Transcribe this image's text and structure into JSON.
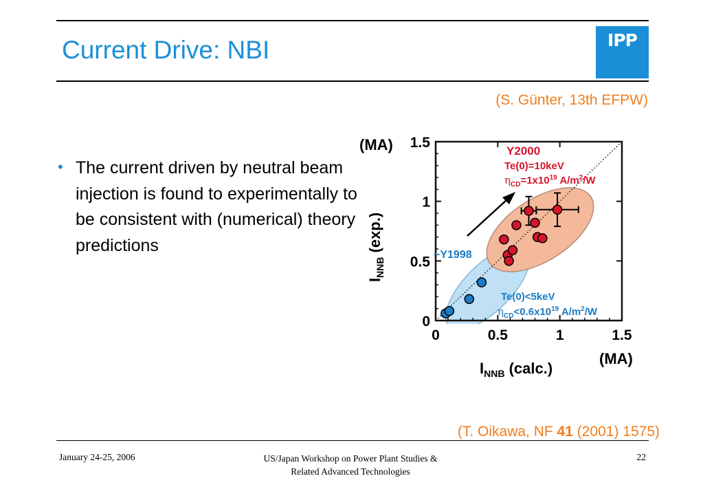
{
  "slide": {
    "title": "Current Drive: NBI",
    "logo_text": "IPP",
    "citation_top": "(S. Günter, 13th EFPW)",
    "bullet": "The current driven by neutral beam injection is found to experimentally to be consistent with (numerical) theory predictions",
    "citation_bottom": {
      "pre": "(T. Oikawa, NF ",
      "volume": "41",
      "post": " (2001) 1575)"
    }
  },
  "footer": {
    "date": "January 24-25, 2006",
    "center_line1": "US/Japan Workshop on Power Plant Studies &",
    "center_line2": "Related Advanced Technologies",
    "page": "22"
  },
  "colors": {
    "accent_blue": "#1a8fd8",
    "citation_orange": "#f07d1e",
    "red_points": "#d7142c",
    "blue_points": "#1c7bc4",
    "orange_ellipse": "#f3b99a",
    "blue_ellipse": "#bfe0f5"
  },
  "chart_data": {
    "type": "scatter",
    "xlim": [
      0,
      1.5
    ],
    "ylim": [
      0,
      1.5
    ],
    "x_ticks": [
      "0",
      "0.5",
      "1",
      "1.5"
    ],
    "y_ticks": [
      "0",
      "0.5",
      "1",
      "1.5"
    ],
    "xlabel": {
      "main": "I",
      "sub": "NNB",
      "rest": " (calc.)"
    },
    "ylabel": {
      "main": "I",
      "sub": "NNB",
      "rest": " (exp.)"
    },
    "x_unit": "(MA)",
    "y_unit": "(MA)",
    "reference_line": "y = x (dotted)",
    "annotations": {
      "y1998": "~Y1998",
      "y2000": "Y2000",
      "red_te": "Te(0)=10keV",
      "red_eta": {
        "sym": "η",
        "sub": "CD",
        "pre": "=1x10",
        "exp": "19",
        "unit": " A/m",
        "exp2": "2",
        "tail": "/W"
      },
      "blue_te": "Te(0)<5keV",
      "blue_eta": {
        "sym": "η",
        "sub": "CD",
        "pre": "<0.6x10",
        "exp": "19",
        "unit": " A/m",
        "exp2": "2",
        "tail": "/W"
      }
    },
    "series": [
      {
        "name": "Y2000",
        "color": "#d7142c",
        "points": [
          {
            "x": 0.55,
            "y": 0.68
          },
          {
            "x": 0.58,
            "y": 0.55
          },
          {
            "x": 0.59,
            "y": 0.5
          },
          {
            "x": 0.62,
            "y": 0.59
          },
          {
            "x": 0.65,
            "y": 0.8
          },
          {
            "x": 0.75,
            "y": 0.92,
            "xerr": 0.06,
            "yerr": 0.12
          },
          {
            "x": 0.8,
            "y": 0.82
          },
          {
            "x": 0.82,
            "y": 0.7
          },
          {
            "x": 0.86,
            "y": 0.69
          },
          {
            "x": 0.98,
            "y": 0.93,
            "xerr": 0.17,
            "yerr": 0.14
          }
        ]
      },
      {
        "name": "~Y1998",
        "color": "#1c7bc4",
        "points": [
          {
            "x": 0.08,
            "y": 0.06
          },
          {
            "x": 0.11,
            "y": 0.08
          },
          {
            "x": 0.27,
            "y": 0.18
          },
          {
            "x": 0.37,
            "y": 0.32
          }
        ]
      }
    ]
  }
}
